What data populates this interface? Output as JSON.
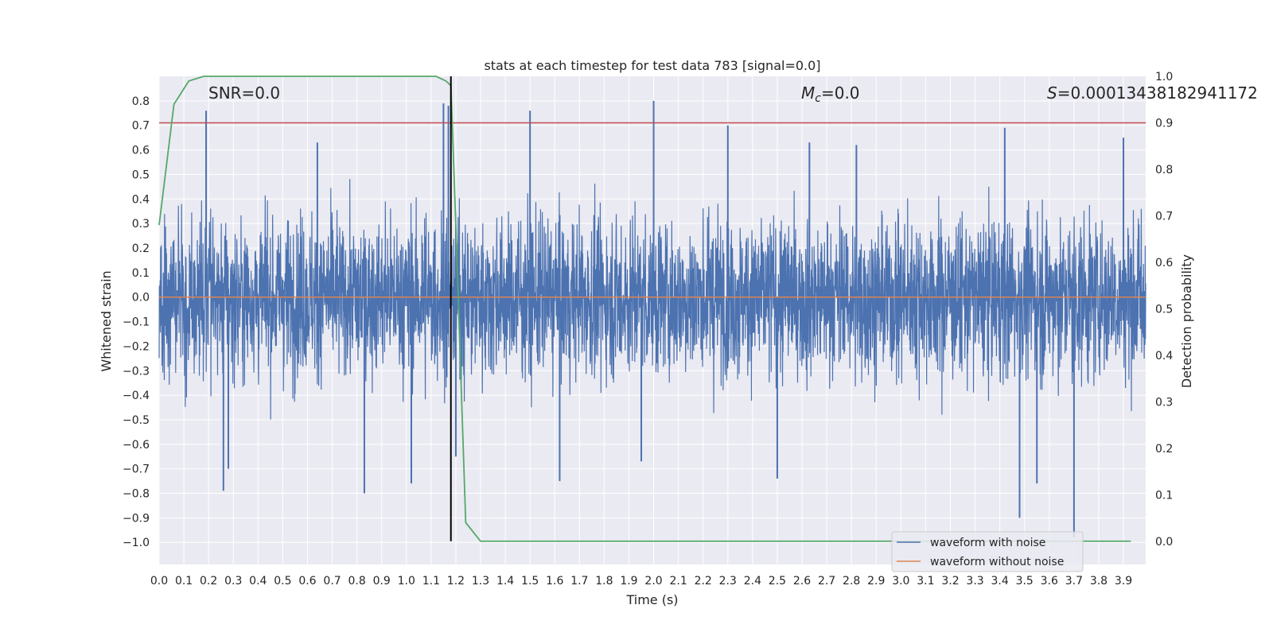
{
  "chart_data": {
    "type": "line",
    "title": "stats at each timestep for test data 783 [signal=0.0]",
    "xlabel": "Time (s)",
    "ylabel": "Whitened strain",
    "ylabel_right": "Detection probability",
    "xlim": [
      0.0,
      3.99
    ],
    "ylim": [
      -1.09,
      0.9
    ],
    "ylim_right": [
      -0.05,
      1.0
    ],
    "x_ticks": [
      "0.0",
      "0.1",
      "0.2",
      "0.3",
      "0.4",
      "0.5",
      "0.6",
      "0.7",
      "0.8",
      "0.9",
      "1.0",
      "1.1",
      "1.2",
      "1.3",
      "1.4",
      "1.5",
      "1.6",
      "1.7",
      "1.8",
      "1.9",
      "2.0",
      "2.1",
      "2.2",
      "2.3",
      "2.4",
      "2.5",
      "2.6",
      "2.7",
      "2.8",
      "2.9",
      "3.0",
      "3.1",
      "3.2",
      "3.3",
      "3.4",
      "3.5",
      "3.6",
      "3.7",
      "3.8",
      "3.9"
    ],
    "y_ticks": [
      "0.8",
      "0.7",
      "0.6",
      "0.5",
      "0.4",
      "0.3",
      "0.2",
      "0.1",
      "0.0",
      "−0.1",
      "−0.2",
      "−0.3",
      "−0.4",
      "−0.5",
      "−0.6",
      "−0.7",
      "−0.8",
      "−0.9",
      "−1.0"
    ],
    "y_right_ticks": [
      "1.0",
      "0.9",
      "0.8",
      "0.7",
      "0.6",
      "0.5",
      "0.4",
      "0.3",
      "0.2",
      "0.1",
      "0.0"
    ],
    "grid": true,
    "legend_position": "bottom-right",
    "annotations": {
      "snr": "SNR=0.0",
      "mc_symbol": "M",
      "mc_sub": "c",
      "mc_value": "=0.0",
      "s_symbol": "S",
      "s_value": "=0.00013438182941172"
    },
    "series": [
      {
        "name": "waveform with noise",
        "color": "#4c72b0",
        "axis": "left",
        "note_noise": "dense noisy trace, approx. within ±0.3 with spikes",
        "spikes": [
          {
            "x": 0.19,
            "y": 0.76
          },
          {
            "x": 0.26,
            "y": -0.79
          },
          {
            "x": 0.28,
            "y": -0.7
          },
          {
            "x": 0.64,
            "y": 0.63
          },
          {
            "x": 0.83,
            "y": -0.8
          },
          {
            "x": 1.02,
            "y": -0.76
          },
          {
            "x": 1.15,
            "y": 0.79
          },
          {
            "x": 1.17,
            "y": 0.78
          },
          {
            "x": 1.2,
            "y": -0.65
          },
          {
            "x": 1.5,
            "y": 0.76
          },
          {
            "x": 1.62,
            "y": -0.75
          },
          {
            "x": 1.95,
            "y": -0.67
          },
          {
            "x": 2.0,
            "y": 0.8
          },
          {
            "x": 2.3,
            "y": 0.7
          },
          {
            "x": 2.5,
            "y": -0.74
          },
          {
            "x": 2.63,
            "y": 0.63
          },
          {
            "x": 2.82,
            "y": 0.62
          },
          {
            "x": 3.42,
            "y": 0.69
          },
          {
            "x": 3.48,
            "y": -0.9
          },
          {
            "x": 3.55,
            "y": -0.76
          },
          {
            "x": 3.7,
            "y": -0.98
          },
          {
            "x": 3.9,
            "y": 0.65
          }
        ]
      },
      {
        "name": "waveform without noise",
        "color": "#dd8452",
        "axis": "left",
        "x": [
          0.0,
          3.99
        ],
        "y": [
          0.0,
          0.0
        ]
      },
      {
        "name": "",
        "color": "#55a868",
        "axis": "right",
        "x": [
          0.0,
          0.06,
          0.12,
          0.18,
          0.24,
          0.3,
          0.6,
          0.9,
          1.12,
          1.16,
          1.18,
          1.2,
          1.24,
          1.3,
          1.36,
          1.5,
          2.0,
          3.0,
          3.93
        ],
        "y": [
          0.68,
          0.94,
          0.99,
          1.0,
          1.0,
          1.0,
          1.0,
          1.0,
          1.0,
          0.99,
          0.98,
          0.68,
          0.04,
          0.0,
          0.0,
          0.0,
          0.0,
          0.0,
          0.0
        ]
      }
    ],
    "hlines": [
      {
        "axis": "right",
        "y": 0.9,
        "color": "#c44e52"
      }
    ],
    "vlines": [
      {
        "x": 1.18,
        "color": "#000000",
        "ymin_right": 0.0,
        "ymax_right": 1.0
      }
    ]
  }
}
